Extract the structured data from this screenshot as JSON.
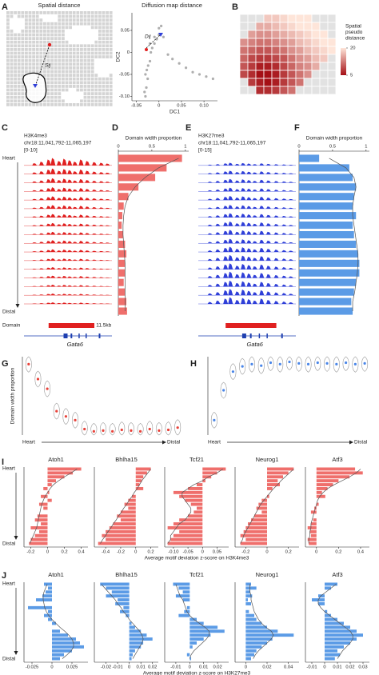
{
  "chart_data": [
    {
      "type": "map",
      "panel": "A",
      "title": "Spatial distance",
      "annotation": "Sij"
    },
    {
      "type": "scatter",
      "title": "Diffusion map distance",
      "xlabel": "DC1",
      "ylabel": "DC2",
      "annotation": "Dij",
      "color": "#9a9a9a",
      "x": [
        -0.03,
        -0.032,
        -0.028,
        -0.025,
        -0.03,
        -0.027,
        -0.024,
        -0.02,
        -0.018,
        -0.015,
        -0.01,
        -0.005,
        0.0,
        0.01,
        0.02,
        0.03,
        0.045,
        0.06,
        0.075,
        0.09,
        0.105,
        0.12,
        -0.02,
        -0.01,
        0.0,
        0.005
      ],
      "y": [
        -0.1,
        -0.09,
        -0.08,
        -0.06,
        -0.05,
        -0.04,
        -0.03,
        -0.02,
        0.0,
        0.01,
        0.02,
        0.03,
        0.04,
        0.035,
        -0.005,
        -0.015,
        -0.025,
        -0.035,
        -0.045,
        -0.05,
        -0.055,
        -0.06,
        0.02,
        0.035,
        0.055,
        0.06
      ],
      "xlim": [
        -0.06,
        0.13
      ],
      "xticks": [
        -0.05,
        0,
        0.05,
        {
          "value": 0.1,
          "label": "0.10"
        }
      ],
      "ylim": [
        -0.11,
        0.09
      ],
      "yticks": [
        0.05,
        0,
        -0.05,
        {
          "value": -0.1,
          "label": "-0.10"
        }
      ]
    },
    {
      "type": "heatmap",
      "panel": "B",
      "legend_title": [
        "Spatial",
        "pseudo",
        "distance"
      ],
      "clim": [
        5,
        20
      ],
      "cticks": [
        20,
        5
      ],
      "values": [
        [
          null,
          null,
          null,
          18,
          18,
          19,
          20,
          20,
          20,
          null,
          null,
          null
        ],
        [
          null,
          null,
          16,
          16,
          17,
          18,
          19,
          20,
          20,
          20,
          null,
          null
        ],
        [
          null,
          15,
          14,
          14,
          15,
          16,
          17,
          18,
          19,
          20,
          20,
          null
        ],
        [
          14,
          13,
          12,
          12,
          13,
          14,
          15,
          17,
          18,
          19,
          20,
          20
        ],
        [
          12,
          11,
          10,
          10,
          11,
          12,
          14,
          15,
          17,
          18,
          19,
          20
        ],
        [
          11,
          9,
          8,
          8,
          9,
          10,
          12,
          14,
          15,
          17,
          18,
          null
        ],
        [
          10,
          8,
          6,
          6,
          7,
          9,
          11,
          13,
          14,
          16,
          null,
          null
        ],
        [
          9,
          7,
          5,
          5,
          6,
          8,
          10,
          12,
          14,
          null,
          null,
          null
        ],
        [
          null,
          8,
          6,
          5,
          6,
          8,
          10,
          12,
          null,
          null,
          null,
          null
        ],
        [
          null,
          null,
          7,
          7,
          8,
          10,
          12,
          null,
          null,
          null,
          null,
          null
        ]
      ]
    },
    {
      "type": "tracks",
      "panel": "C",
      "title": "H3K4me3",
      "locus": "chr18:11,041,792-11,065,197",
      "range": "[0-10]",
      "gene": "Gata6",
      "start_label": "Heart",
      "end_label": "Distal",
      "domain_label": "Domain",
      "scale_label": "11.5kb",
      "color": "#e02020",
      "values": [
        1,
        0.75,
        0.6,
        0.55,
        0.5,
        0.48,
        0.45,
        0.4,
        0.38,
        0.42,
        0.35,
        0.3,
        0.28,
        0.3,
        0.25,
        0.22,
        0.2
      ]
    },
    {
      "type": "hbar",
      "panel": "D",
      "title": "Domain width proportion",
      "color": "#ef6f6c",
      "xlim": [
        0,
        1.05
      ],
      "xticks": [
        0,
        0.5,
        1
      ],
      "values": [
        0.95,
        0.72,
        0.55,
        0.3,
        0.15,
        0.08,
        0.06,
        0.05,
        0.07,
        0.1,
        0.12,
        0.1,
        0.1,
        0.08,
        0.1,
        0.12,
        0.13
      ],
      "fit": [
        0.9,
        0.6,
        0.4,
        0.25,
        0.15,
        0.1,
        0.08,
        0.07,
        0.07,
        0.08,
        0.09,
        0.1,
        0.1,
        0.1,
        0.1,
        0.1,
        0.1
      ]
    },
    {
      "type": "tracks",
      "panel": "E",
      "title": "H3K27me3",
      "locus": "chr18:11,041,792-11,065,197",
      "range": "[0-15]",
      "gene": "Gata6",
      "color": "#2f3fd8",
      "values": [
        0.35,
        0.45,
        0.5,
        0.5,
        0.55,
        0.5,
        0.55,
        0.6,
        0.65,
        0.6,
        0.7,
        0.75,
        0.8,
        0.85,
        0.8,
        0.85,
        0.9
      ]
    },
    {
      "type": "hbar",
      "panel": "F",
      "title": "Domain width proportion",
      "color": "#5b9be6",
      "xlim": [
        0,
        1.05
      ],
      "xticks": [
        0,
        0.5,
        1
      ],
      "values": [
        0.3,
        0.75,
        0.8,
        0.85,
        0.82,
        0.8,
        0.85,
        0.8,
        0.82,
        0.85,
        0.88,
        0.9,
        0.9,
        0.85,
        0.82,
        0.78,
        0.8
      ],
      "fit": [
        0.45,
        0.7,
        0.82,
        0.85,
        0.82,
        0.8,
        0.8,
        0.82,
        0.84,
        0.86,
        0.88,
        0.88,
        0.87,
        0.85,
        0.83,
        0.8,
        0.8
      ]
    },
    {
      "type": "violin",
      "panel": "G",
      "ylabel": "Domain width proportion",
      "start_label": "Heart",
      "end_label": "Distal",
      "color": "#e8423a",
      "ylim": [
        0,
        1.05
      ],
      "values": [
        0.95,
        0.75,
        0.62,
        0.32,
        0.25,
        0.2,
        0.08,
        0.05,
        0.06,
        0.05,
        0.07,
        0.06,
        0.05,
        0.08,
        0.06,
        0.07,
        0.1
      ]
    },
    {
      "type": "violin",
      "panel": "H",
      "start_label": "Heart",
      "end_label": "Distal",
      "color": "#4a86e8",
      "ylim": [
        0,
        1.05
      ],
      "values": [
        0.2,
        0.6,
        0.85,
        0.92,
        0.95,
        0.93,
        0.97,
        0.95,
        0.98,
        0.96,
        0.95,
        0.97,
        0.96,
        0.95,
        0.97,
        0.95,
        0.96
      ]
    },
    {
      "type": "bargrid",
      "panel": "I",
      "xlabel": "Average motif deviation z-score on H3K4me3",
      "start_label": "Heart",
      "end_label": "Distal",
      "color": "#ef6f6c",
      "panels": [
        {
          "title": "Atoh1",
          "xlim": [
            -0.28,
            0.48
          ],
          "xticks": [
            -0.2,
            0,
            0.2,
            0.4
          ],
          "values": [
            0.4,
            0.3,
            0.2,
            0.1,
            0.05,
            -0.05,
            0.02,
            -0.08,
            0.05,
            -0.1,
            -0.05,
            0,
            -0.12,
            -0.15,
            -0.08,
            -0.2,
            -0.1,
            -0.15,
            -0.2,
            -0.22
          ],
          "fit": [
            0.35,
            0.28,
            0.2,
            0.13,
            0.07,
            0.03,
            0,
            -0.03,
            -0.05,
            -0.07,
            -0.08,
            -0.09,
            -0.1,
            -0.11,
            -0.12,
            -0.13,
            -0.15,
            -0.17,
            -0.19,
            -0.21
          ]
        },
        {
          "title": "Bhlha15",
          "xlim": [
            -0.55,
            0.3
          ],
          "xticks": [
            -0.4,
            -0.2,
            0,
            0.2
          ],
          "values": [
            0.2,
            0.15,
            0.1,
            0.08,
            0.05,
            0.1,
            0,
            -0.05,
            -0.1,
            -0.15,
            -0.1,
            -0.2,
            -0.25,
            -0.2,
            -0.3,
            -0.35,
            -0.4,
            -0.45,
            -0.4,
            -0.5
          ],
          "fit": [
            0.2,
            0.16,
            0.12,
            0.08,
            0.05,
            0.02,
            -0.02,
            -0.05,
            -0.09,
            -0.12,
            -0.16,
            -0.19,
            -0.23,
            -0.26,
            -0.3,
            -0.33,
            -0.37,
            -0.4,
            -0.44,
            -0.47
          ]
        },
        {
          "title": "Tcf21",
          "xlim": [
            -0.13,
            0.09
          ],
          "xticks": [
            {
              "value": -0.1,
              "label": "-0.10"
            },
            -0.05,
            0,
            0.05
          ],
          "values": [
            0.08,
            0.05,
            0.03,
            0.01,
            -0.02,
            -0.05,
            -0.1,
            -0.08,
            -0.06,
            -0.04,
            -0.02,
            -0.03,
            -0.05,
            -0.08,
            -0.1,
            -0.12,
            -0.08,
            -0.1,
            -0.11,
            -0.12
          ],
          "fit": [
            0.07,
            0.05,
            0.02,
            0,
            -0.03,
            -0.05,
            -0.07,
            -0.07,
            -0.06,
            -0.05,
            -0.04,
            -0.04,
            -0.05,
            -0.06,
            -0.08,
            -0.09,
            -0.1,
            -0.11,
            -0.11,
            -0.12
          ]
        },
        {
          "title": "Neurog1",
          "xlim": [
            -0.3,
            0.3
          ],
          "xticks": [
            -0.2,
            0,
            0.2
          ],
          "values": [
            0.25,
            0.2,
            0.15,
            0.1,
            0.12,
            0.05,
            0,
            0.02,
            -0.05,
            -0.08,
            -0.1,
            -0.05,
            -0.12,
            -0.15,
            -0.18,
            -0.2,
            -0.22,
            -0.25,
            -0.2,
            -0.25
          ],
          "fit": [
            0.25,
            0.21,
            0.17,
            0.13,
            0.1,
            0.06,
            0.03,
            0,
            -0.03,
            -0.06,
            -0.08,
            -0.1,
            -0.12,
            -0.14,
            -0.16,
            -0.18,
            -0.2,
            -0.22,
            -0.23,
            -0.25
          ]
        },
        {
          "title": "Atf3",
          "xlim": [
            -0.1,
            0.48
          ],
          "xticks": [
            0,
            0.2,
            0.4
          ],
          "values": [
            0.35,
            0.42,
            0.3,
            0.2,
            0.15,
            0.1,
            0.05,
            0.08,
            0,
            0.02,
            -0.02,
            -0.05,
            0,
            -0.03,
            -0.05,
            -0.08,
            -0.06,
            -0.05,
            -0.08,
            -0.07
          ],
          "fit": [
            0.4,
            0.36,
            0.3,
            0.23,
            0.16,
            0.1,
            0.06,
            0.03,
            0.01,
            0,
            -0.01,
            -0.02,
            -0.03,
            -0.04,
            -0.05,
            -0.05,
            -0.06,
            -0.06,
            -0.07,
            -0.07
          ]
        }
      ]
    },
    {
      "type": "bargrid",
      "panel": "J",
      "xlabel": "Average motif deviation z-score on H3K27me3",
      "start_label": "Heart",
      "end_label": "Distal",
      "color": "#5b9be6",
      "panels": [
        {
          "title": "Atoh1",
          "xlim": [
            -0.035,
            0.045
          ],
          "xticks": [
            -0.025,
            0,
            0.025
          ],
          "values": [
            -0.01,
            -0.005,
            -0.008,
            -0.012,
            -0.02,
            0,
            -0.03,
            -0.005,
            -0.01,
            -0.005,
            0.005,
            0,
            0.01,
            0.02,
            0.03,
            0.035,
            0.04,
            0.025,
            0.015,
            0.01
          ],
          "fit": [
            -0.006,
            -0.008,
            -0.01,
            -0.011,
            -0.011,
            -0.01,
            -0.009,
            -0.007,
            -0.004,
            0,
            0.005,
            0.01,
            0.016,
            0.021,
            0.025,
            0.027,
            0.027,
            0.024,
            0.019,
            0.013
          ]
        },
        {
          "title": "Bhlha15",
          "xlim": [
            -0.03,
            0.025
          ],
          "xticks": [
            -0.02,
            -0.01,
            0,
            0.01,
            0.02
          ],
          "values": [
            -0.025,
            -0.02,
            -0.015,
            -0.02,
            -0.01,
            -0.012,
            -0.005,
            -0.008,
            -0.003,
            0,
            0.002,
            0.005,
            0.01,
            0.015,
            0.02,
            0.012,
            0.01,
            0.005,
            0.003,
            0.002
          ],
          "fit": [
            -0.024,
            -0.021,
            -0.018,
            -0.015,
            -0.012,
            -0.01,
            -0.007,
            -0.005,
            -0.002,
            0,
            0.003,
            0.006,
            0.009,
            0.011,
            0.012,
            0.011,
            0.009,
            0.007,
            0.005,
            0.003
          ]
        },
        {
          "title": "Tcf21",
          "xlim": [
            -0.018,
            0.028
          ],
          "xticks": [
            -0.01,
            0,
            0.01,
            0.02
          ],
          "values": [
            -0.012,
            -0.008,
            -0.005,
            -0.01,
            -0.005,
            0,
            -0.002,
            -0.004,
            -0.008,
            0.005,
            0.01,
            0.02,
            0.025,
            0.015,
            0.01,
            0.005,
            0.002,
            0,
            -0.002,
            0.001
          ],
          "fit": [
            -0.01,
            -0.009,
            -0.008,
            -0.007,
            -0.005,
            -0.004,
            -0.003,
            -0.002,
            0,
            0.003,
            0.007,
            0.011,
            0.014,
            0.014,
            0.012,
            0.009,
            0.006,
            0.003,
            0.001,
            0
          ]
        },
        {
          "title": "Neurog1",
          "xlim": [
            -0.01,
            0.05
          ],
          "xticks": [
            0,
            0.02,
            0.04
          ],
          "values": [
            0.005,
            0.01,
            0.004,
            0.006,
            0.002,
            0.005,
            0,
            0.003,
            0.008,
            0.01,
            0.015,
            0.02,
            0.03,
            0.045,
            0.025,
            0.02,
            0.015,
            0.01,
            0.008,
            0.005
          ],
          "fit": [
            0.004,
            0.004,
            0.004,
            0.005,
            0.005,
            0.006,
            0.007,
            0.008,
            0.01,
            0.012,
            0.015,
            0.019,
            0.024,
            0.026,
            0.024,
            0.02,
            0.016,
            0.012,
            0.009,
            0.007
          ]
        },
        {
          "title": "Atf3",
          "xlim": [
            -0.015,
            0.035
          ],
          "xticks": [
            -0.01,
            0,
            0.01,
            0.02,
            0.03
          ],
          "values": [
            0.01,
            0.005,
            0,
            -0.005,
            -0.01,
            -0.005,
            0,
            0.002,
            0.005,
            0.01,
            0.015,
            0.02,
            0.025,
            0.03,
            0.025,
            0.02,
            0.015,
            0.01,
            0.012,
            0.008
          ],
          "fit": [
            0.009,
            0.005,
            0.001,
            -0.003,
            -0.005,
            -0.005,
            -0.003,
            0,
            0.004,
            0.008,
            0.012,
            0.016,
            0.02,
            0.022,
            0.022,
            0.02,
            0.017,
            0.014,
            0.012,
            0.01
          ]
        }
      ]
    }
  ]
}
